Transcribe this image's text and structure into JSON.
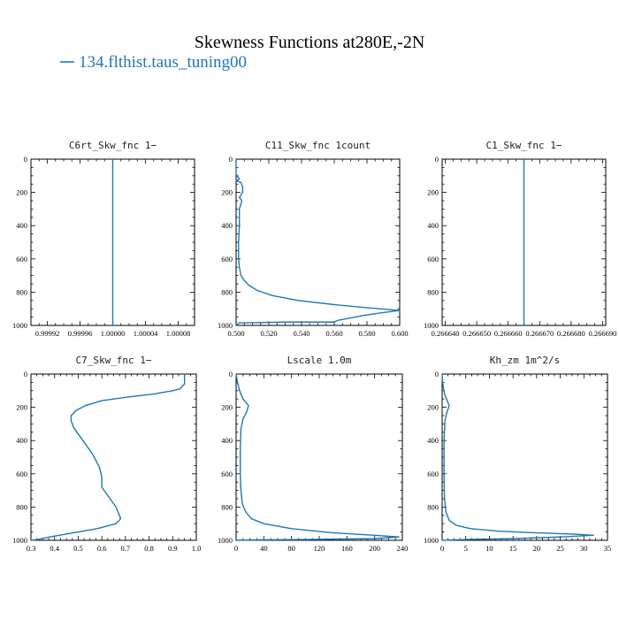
{
  "figure": {
    "title": "Skewness Functions at280E,-2N",
    "legend_label": "134.flthist.taus_tuning00",
    "series_color": "#1f77b4"
  },
  "chart_data": [
    {
      "type": "line",
      "title": "C6rt_Skw_fnc   1−",
      "xlim": [
        0.9999,
        1.0001
      ],
      "ylim": [
        1000,
        0
      ],
      "xticks": [
        0.99992,
        0.99996,
        1.0,
        1.00004,
        1.00008
      ],
      "xtick_labels": [
        "0.99992",
        "0.99996",
        "1.00000",
        "1.00004",
        "1.00008"
      ],
      "yticks": [
        0,
        200,
        400,
        600,
        800,
        1000
      ],
      "series": [
        {
          "x": [
            1.0,
            1.0
          ],
          "y": [
            0,
            1000
          ]
        }
      ]
    },
    {
      "type": "line",
      "title": "C11_Skw_fnc   1count",
      "xlim": [
        0.5,
        0.6
      ],
      "ylim": [
        1000,
        0
      ],
      "xticks": [
        0.5,
        0.52,
        0.54,
        0.56,
        0.58,
        0.6
      ],
      "xtick_labels": [
        "0.500",
        "0.520",
        "0.540",
        "0.560",
        "0.580",
        "0.600"
      ],
      "yticks": [
        0,
        200,
        400,
        600,
        800,
        1000
      ],
      "series": [
        {
          "x": [
            0.5,
            0.5,
            0.502,
            0.5,
            0.503,
            0.504,
            0.504,
            0.502,
            0.5035,
            0.503,
            0.502,
            0.502,
            0.5015,
            0.5015,
            0.502,
            0.503,
            0.505,
            0.508,
            0.513,
            0.522,
            0.538,
            0.56,
            0.582,
            0.6,
            0.588,
            0.578,
            0.57,
            0.562,
            0.56,
            0.53,
            0.502,
            0.5
          ],
          "y": [
            0,
            90,
            120,
            130,
            140,
            170,
            200,
            230,
            250,
            270,
            300,
            400,
            500,
            600,
            650,
            700,
            730,
            760,
            790,
            820,
            850,
            875,
            895,
            910,
            925,
            940,
            955,
            970,
            980,
            980,
            985,
            1000
          ]
        }
      ]
    },
    {
      "type": "line",
      "title": "C1_Skw_fnc   1−",
      "xlim": [
        0.266639,
        0.266691
      ],
      "ylim": [
        1000,
        0
      ],
      "xticks": [
        0.26664,
        0.26665,
        0.26666,
        0.26667,
        0.26668,
        0.26669
      ],
      "xtick_labels": [
        "0.266640",
        "0.266650",
        "0.266660",
        "0.266670",
        "0.266680",
        "0.266690"
      ],
      "yticks": [
        0,
        200,
        400,
        600,
        800,
        1000
      ],
      "series": [
        {
          "x": [
            0.266665,
            0.266665
          ],
          "y": [
            0,
            1000
          ]
        }
      ]
    },
    {
      "type": "line",
      "title": "C7_Skw_fnc   1−",
      "xlim": [
        0.3,
        1.0
      ],
      "ylim": [
        1000,
        0
      ],
      "xticks": [
        0.3,
        0.4,
        0.5,
        0.6,
        0.7,
        0.8,
        0.9,
        1.0
      ],
      "xtick_labels": [
        "0.3",
        "0.4",
        "0.5",
        "0.6",
        "0.7",
        "0.8",
        "0.9",
        "1.0"
      ],
      "yticks": [
        0,
        200,
        400,
        600,
        800,
        1000
      ],
      "series": [
        {
          "x": [
            0.95,
            0.95,
            0.93,
            0.9,
            0.82,
            0.7,
            0.6,
            0.53,
            0.49,
            0.47,
            0.47,
            0.48,
            0.52,
            0.56,
            0.59,
            0.6,
            0.6,
            0.61,
            0.62,
            0.66,
            0.68,
            0.66,
            0.58,
            0.46,
            0.38,
            0.33,
            0.3
          ],
          "y": [
            0,
            60,
            90,
            100,
            120,
            140,
            160,
            190,
            220,
            250,
            280,
            320,
            400,
            480,
            560,
            620,
            680,
            700,
            720,
            800,
            870,
            900,
            930,
            960,
            980,
            995,
            1000
          ]
        }
      ]
    },
    {
      "type": "line",
      "title": "Lscale   1.0m",
      "xlim": [
        0,
        240
      ],
      "ylim": [
        1000,
        0
      ],
      "xticks": [
        0,
        40,
        80,
        120,
        160,
        200,
        240
      ],
      "xtick_labels": [
        "0",
        "40",
        "80",
        "120",
        "160",
        "200",
        "240"
      ],
      "yticks": [
        0,
        200,
        400,
        600,
        800,
        1000
      ],
      "series": [
        {
          "x": [
            0,
            2,
            5,
            10,
            18,
            15,
            10,
            7,
            6,
            6,
            7,
            9,
            14,
            22,
            40,
            80,
            140,
            200,
            235,
            200,
            100,
            20,
            0
          ],
          "y": [
            0,
            50,
            100,
            150,
            190,
            230,
            270,
            330,
            450,
            600,
            700,
            780,
            830,
            870,
            900,
            930,
            955,
            970,
            980,
            990,
            995,
            998,
            1000
          ]
        }
      ]
    },
    {
      "type": "line",
      "title": "Kh_zm   1m^2/s",
      "xlim": [
        0,
        35
      ],
      "ylim": [
        1000,
        0
      ],
      "xticks": [
        0,
        5,
        10,
        15,
        20,
        25,
        30,
        35
      ],
      "xtick_labels": [
        "0",
        "5",
        "10",
        "15",
        "20",
        "25",
        "30",
        "35"
      ],
      "yticks": [
        0,
        200,
        400,
        600,
        800,
        1000
      ],
      "series": [
        {
          "x": [
            0,
            0.1,
            0.5,
            1.5,
            1.0,
            0.6,
            0.4,
            0.4,
            0.5,
            0.8,
            1.5,
            3,
            6,
            12,
            20,
            28,
            32,
            25,
            15,
            5,
            0
          ],
          "y": [
            0,
            50,
            120,
            190,
            230,
            280,
            400,
            600,
            750,
            830,
            880,
            910,
            930,
            945,
            955,
            963,
            970,
            980,
            990,
            995,
            1000
          ]
        }
      ]
    }
  ]
}
